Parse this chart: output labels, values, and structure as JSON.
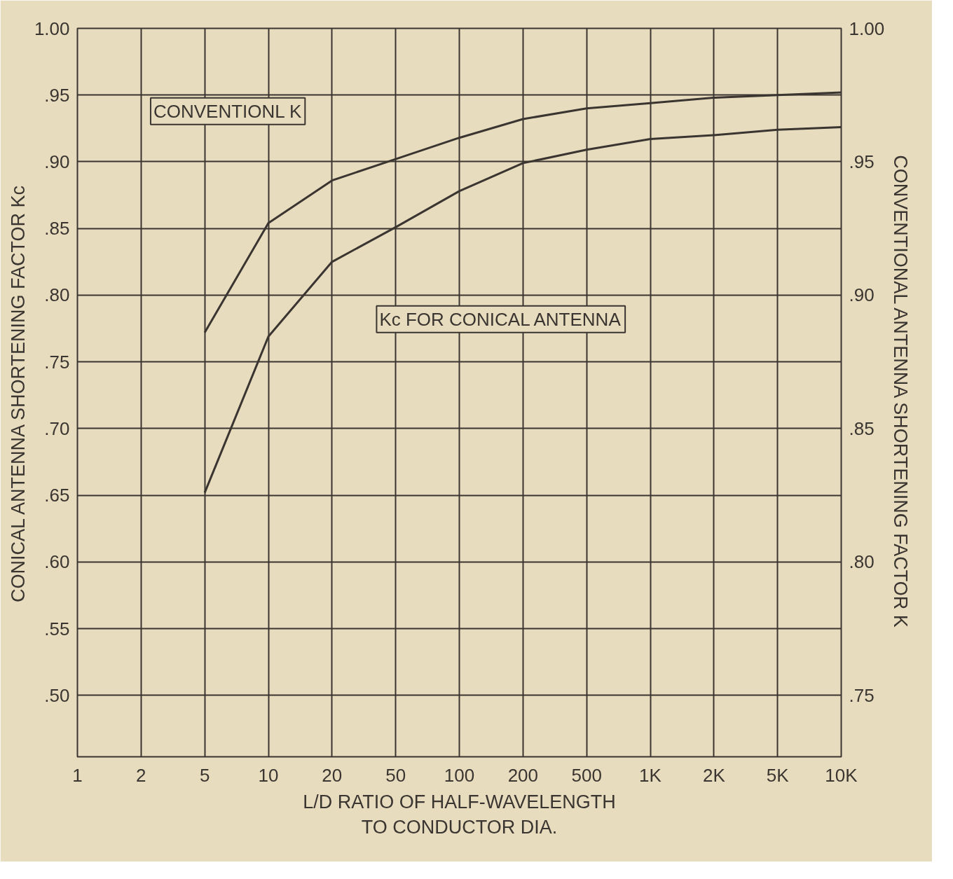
{
  "chart_data": {
    "type": "line",
    "xlabel": "L/D RATIO OF HALF-WAVELENGTH\nTO CONDUCTOR DIA.",
    "ylabel": "CONICAL ANTENNA SHORTENING FACTOR Kc",
    "y2label": "CONVENTIONAL ANTENNA SHORTENING FACTOR K",
    "categories": [
      "1",
      "2",
      "5",
      "10",
      "20",
      "50",
      "100",
      "200",
      "500",
      "1K",
      "2K",
      "5K",
      "10K"
    ],
    "series": [
      {
        "color": "#3a3530",
        "values": [
          null,
          null,
          0.652,
          0.769,
          0.825,
          0.851,
          0.878,
          0.899,
          0.909,
          0.917,
          0.92,
          0.924,
          0.926
        ]
      },
      {
        "color": "#3a3530",
        "axis": "y2",
        "values": [
          null,
          null,
          0.886,
          0.927,
          0.943,
          0.951,
          0.959,
          0.966,
          0.97,
          0.972,
          0.974,
          0.975,
          0.976
        ]
      }
    ],
    "ylim": [
      0.454,
      1.0
    ],
    "yticks": [
      {
        "value": 0.5,
        "label": ".50"
      },
      {
        "value": 0.55,
        "label": ".55"
      },
      {
        "value": 0.6,
        "label": ".60"
      },
      {
        "value": 0.65,
        "label": ".65"
      },
      {
        "value": 0.7,
        "label": ".70"
      },
      {
        "value": 0.75,
        "label": ".75"
      },
      {
        "value": 0.8,
        "label": ".80"
      },
      {
        "value": 0.85,
        "label": ".85"
      },
      {
        "value": 0.9,
        "label": ".90"
      },
      {
        "value": 0.95,
        "label": ".95"
      },
      {
        "value": 1.0,
        "label": "1.00"
      }
    ],
    "y2lim": [
      0.727,
      1.0
    ],
    "y2ticks": [
      {
        "value": 0.75,
        "label": ".75"
      },
      {
        "value": 0.8,
        "label": ".80"
      },
      {
        "value": 0.85,
        "label": ".85"
      },
      {
        "value": 0.9,
        "label": ".90"
      },
      {
        "value": 0.95,
        "label": ".95"
      },
      {
        "value": 1.0,
        "label": "1.00"
      }
    ],
    "annotations": [
      "CONVENTIONL K",
      "Kc FOR CONICAL ANTENNA"
    ],
    "grid": true,
    "line_style": "solid"
  }
}
